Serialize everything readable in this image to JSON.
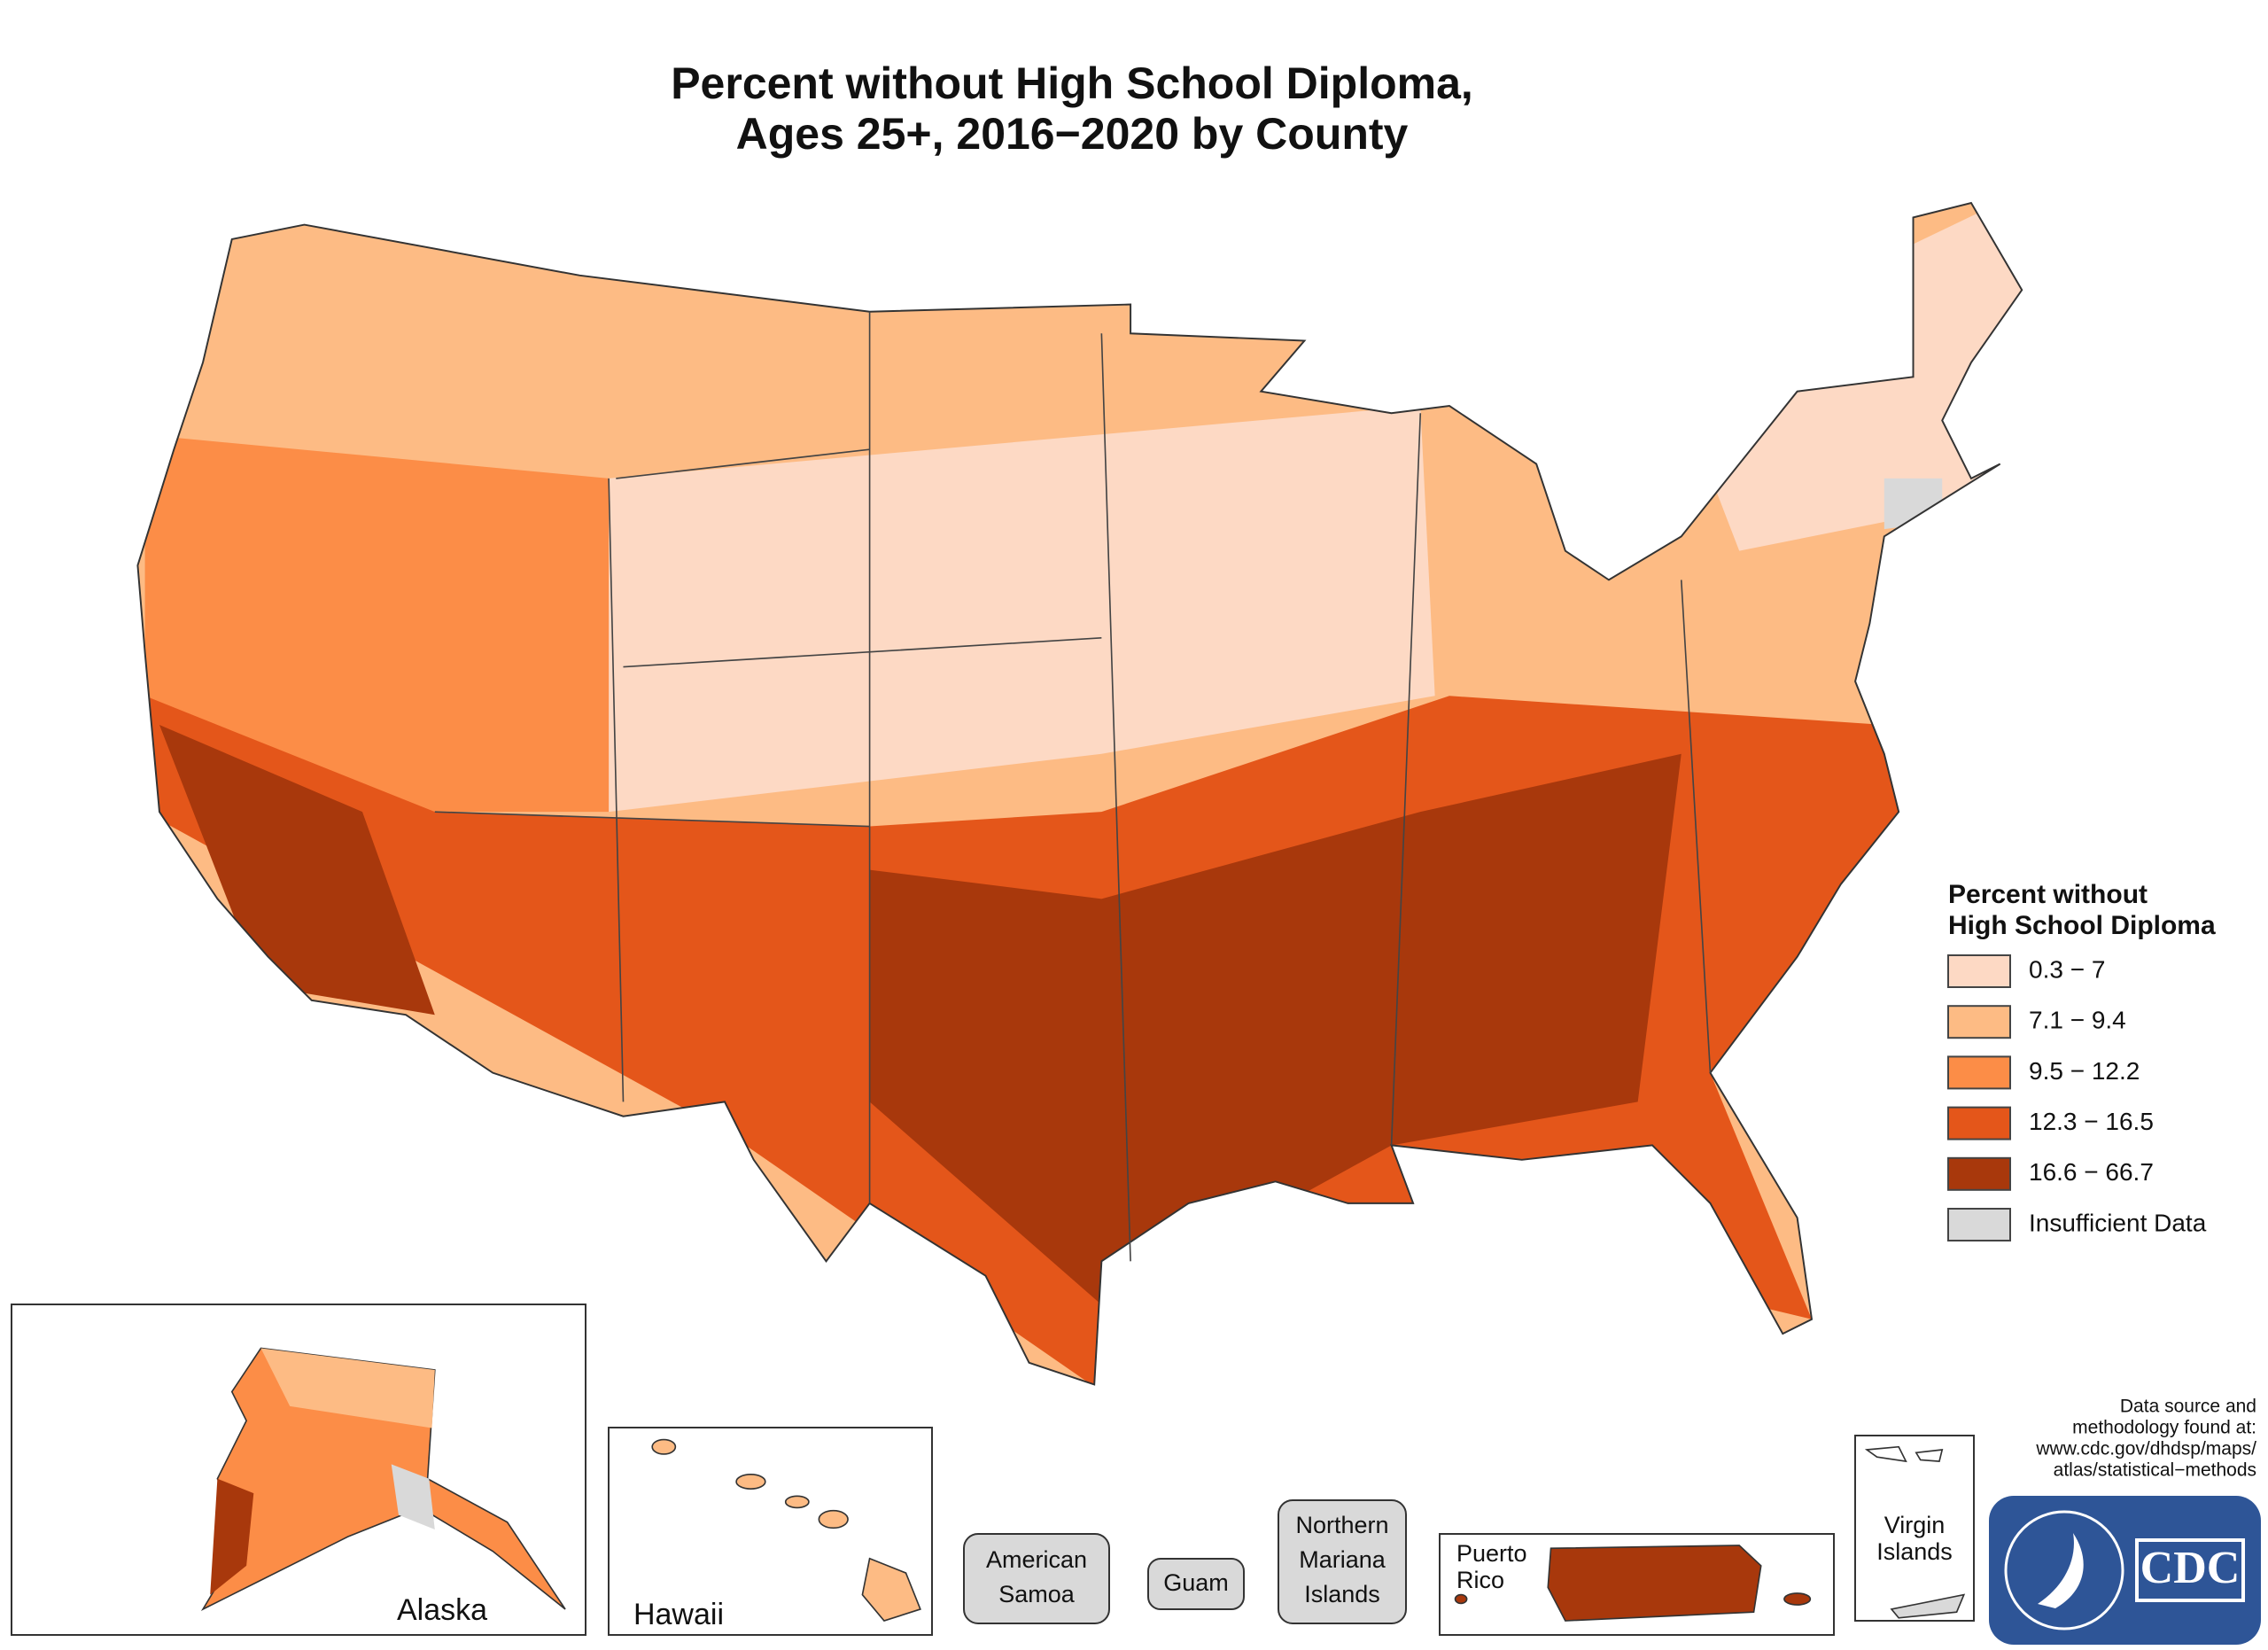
{
  "title": [
    "Percent without High School Diploma,",
    "Ages 25+, 2016−2020 by County"
  ],
  "legend": {
    "title": [
      "Percent without",
      "High School Diploma"
    ],
    "items": [
      {
        "label": "0.3 − 7",
        "color": "#fdd9c4"
      },
      {
        "label": "7.1 − 9.4",
        "color": "#fdbb84"
      },
      {
        "label": "9.5 − 12.2",
        "color": "#fc8d47"
      },
      {
        "label": "12.3 − 16.5",
        "color": "#e4561a"
      },
      {
        "label": "16.6 − 66.7",
        "color": "#a8380c"
      },
      {
        "label": "Insufficient Data",
        "color": "#d9d9d9"
      }
    ]
  },
  "insets": [
    {
      "label": [
        "Alaska"
      ]
    },
    {
      "label": [
        "Hawaii"
      ]
    },
    {
      "label": [
        "American",
        "Samoa"
      ]
    },
    {
      "label": [
        "Guam"
      ]
    },
    {
      "label": [
        "Northern",
        "Mariana",
        "Islands"
      ]
    },
    {
      "label": [
        "Puerto",
        "Rico"
      ]
    },
    {
      "label": [
        "Virgin",
        "Islands"
      ]
    }
  ],
  "source": [
    "Data source and",
    "methodology found at:",
    "www.cdc.gov/dhdsp/maps/",
    "atlas/statistical−methods"
  ],
  "logo": "CDC"
}
